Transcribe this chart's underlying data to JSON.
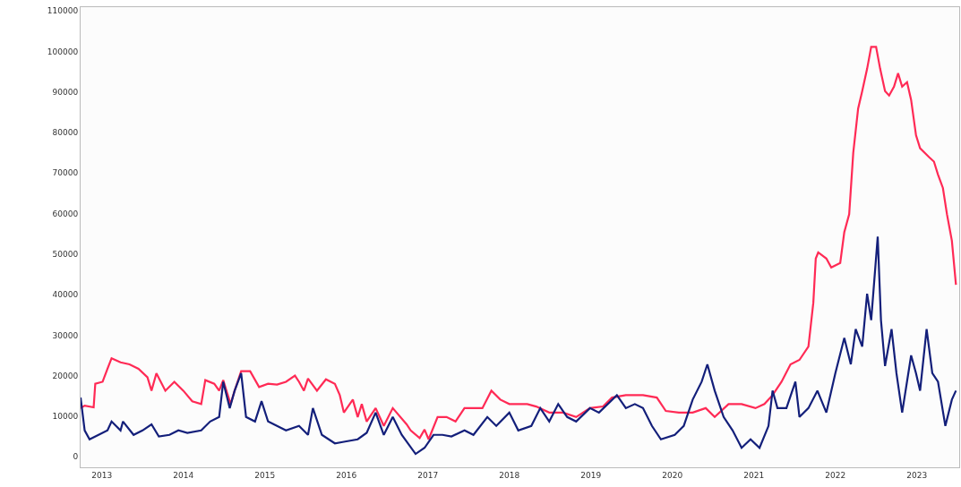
{
  "chart_data": {
    "type": "line",
    "xlim": [
      2012.74,
      2023.52
    ],
    "xticks": [
      2013,
      2014,
      2015,
      2016,
      2017,
      2018,
      2019,
      2020,
      2021,
      2022,
      2023
    ],
    "ylim": [
      -2600,
      110900
    ],
    "yticks": [
      0,
      10000,
      20000,
      30000,
      40000,
      50000,
      60000,
      70000,
      80000,
      90000,
      100000,
      110000
    ],
    "series": [
      {
        "color": "#ff2a55",
        "x": [
          2012.74,
          2012.79,
          2012.9,
          2012.92,
          2013.01,
          2013.07,
          2013.12,
          2013.23,
          2013.34,
          2013.45,
          2013.56,
          2013.61,
          2013.67,
          2013.78,
          2013.89,
          2014.0,
          2014.11,
          2014.22,
          2014.27,
          2014.38,
          2014.44,
          2014.49,
          2014.58,
          2014.63,
          2014.71,
          2014.82,
          2014.93,
          2015.04,
          2015.15,
          2015.26,
          2015.37,
          2015.42,
          2015.48,
          2015.53,
          2015.64,
          2015.75,
          2015.86,
          2015.92,
          2015.97,
          2016.08,
          2016.14,
          2016.19,
          2016.25,
          2016.36,
          2016.46,
          2016.57,
          2016.74,
          2016.79,
          2016.9,
          2016.96,
          2017.01,
          2017.12,
          2017.23,
          2017.34,
          2017.45,
          2017.56,
          2017.67,
          2017.78,
          2017.89,
          2018.0,
          2018.22,
          2018.33,
          2018.49,
          2018.66,
          2018.82,
          2018.99,
          2019.15,
          2019.26,
          2019.43,
          2019.64,
          2019.81,
          2019.92,
          2020.08,
          2020.25,
          2020.41,
          2020.52,
          2020.69,
          2020.85,
          2021.02,
          2021.13,
          2021.23,
          2021.34,
          2021.45,
          2021.56,
          2021.67,
          2021.73,
          2021.76,
          2021.79,
          2021.89,
          2021.95,
          2022.06,
          2022.11,
          2022.17,
          2022.22,
          2022.28,
          2022.33,
          2022.39,
          2022.44,
          2022.5,
          2022.55,
          2022.61,
          2022.66,
          2022.72,
          2022.77,
          2022.82,
          2022.88,
          2022.93,
          2022.99,
          2023.04,
          2023.15,
          2023.21,
          2023.26,
          2023.32,
          2023.37,
          2023.43,
          2023.48
        ],
        "values": [
          12000,
          12600,
          12200,
          18000,
          18500,
          21700,
          24300,
          23300,
          22800,
          21700,
          19600,
          16300,
          20600,
          16300,
          18500,
          16300,
          13700,
          13000,
          18900,
          18000,
          16300,
          18900,
          13000,
          16300,
          21100,
          21100,
          17200,
          18000,
          17800,
          18500,
          20000,
          18500,
          16300,
          19300,
          16300,
          19100,
          18000,
          15200,
          10900,
          14100,
          9800,
          13000,
          8700,
          12000,
          7600,
          12000,
          8000,
          6500,
          4600,
          6700,
          4300,
          9800,
          9800,
          8700,
          12000,
          12000,
          12000,
          16300,
          14100,
          13000,
          13000,
          12400,
          10900,
          10900,
          9800,
          12000,
          12400,
          14600,
          15200,
          15200,
          14600,
          11300,
          10900,
          10900,
          12000,
          9800,
          13000,
          13000,
          12000,
          13000,
          15200,
          18500,
          22800,
          23900,
          27200,
          38000,
          48900,
          50400,
          48900,
          46700,
          47800,
          55400,
          59800,
          75000,
          85900,
          90200,
          95700,
          101100,
          101100,
          95700,
          90200,
          89100,
          91300,
          94600,
          91300,
          92400,
          88000,
          79300,
          76100,
          73900,
          72800,
          69600,
          66300,
          59800,
          53300,
          42400
        ]
      },
      {
        "color": "#131f7a",
        "x": [
          2012.74,
          2012.79,
          2012.85,
          2012.96,
          2013.07,
          2013.12,
          2013.23,
          2013.26,
          2013.39,
          2013.5,
          2013.61,
          2013.7,
          2013.83,
          2013.94,
          2014.05,
          2014.22,
          2014.33,
          2014.44,
          2014.49,
          2014.57,
          2014.63,
          2014.71,
          2014.77,
          2014.88,
          2014.96,
          2015.04,
          2015.15,
          2015.26,
          2015.42,
          2015.53,
          2015.59,
          2015.7,
          2015.86,
          2015.97,
          2016.14,
          2016.25,
          2016.36,
          2016.46,
          2016.57,
          2016.68,
          2016.85,
          2016.96,
          2017.07,
          2017.18,
          2017.29,
          2017.45,
          2017.56,
          2017.73,
          2017.84,
          2018.0,
          2018.11,
          2018.27,
          2018.38,
          2018.49,
          2018.6,
          2018.71,
          2018.82,
          2018.99,
          2019.1,
          2019.32,
          2019.43,
          2019.54,
          2019.64,
          2019.75,
          2019.86,
          2020.03,
          2020.14,
          2020.25,
          2020.36,
          2020.43,
          2020.52,
          2020.63,
          2020.74,
          2020.85,
          2020.96,
          2021.07,
          2021.18,
          2021.23,
          2021.29,
          2021.4,
          2021.51,
          2021.56,
          2021.67,
          2021.78,
          2021.89,
          2022.0,
          2022.11,
          2022.19,
          2022.25,
          2022.33,
          2022.39,
          2022.44,
          2022.52,
          2022.56,
          2022.61,
          2022.69,
          2022.75,
          2022.82,
          2022.93,
          2022.99,
          2023.04,
          2023.12,
          2023.19,
          2023.26,
          2023.35,
          2023.43,
          2023.48
        ],
        "values": [
          14600,
          6500,
          4300,
          5400,
          6500,
          8700,
          6500,
          8700,
          5400,
          6500,
          8000,
          5000,
          5400,
          6500,
          5900,
          6500,
          8700,
          9800,
          18500,
          12000,
          16300,
          20600,
          9800,
          8700,
          13700,
          8700,
          7600,
          6500,
          7600,
          5400,
          12000,
          5400,
          3300,
          3700,
          4300,
          5900,
          10900,
          5400,
          9800,
          5400,
          700,
          2200,
          5400,
          5400,
          5000,
          6500,
          5400,
          9800,
          7600,
          10900,
          6500,
          7600,
          12000,
          8700,
          13000,
          9800,
          8700,
          12000,
          10900,
          15200,
          12000,
          13000,
          12000,
          7600,
          4300,
          5400,
          7600,
          14100,
          18500,
          22800,
          16300,
          9800,
          6500,
          2200,
          4300,
          2200,
          7600,
          16300,
          12000,
          12000,
          18500,
          9800,
          12000,
          16300,
          10900,
          20600,
          29300,
          22800,
          31500,
          27200,
          40200,
          33700,
          54300,
          33700,
          22400,
          31500,
          20600,
          10900,
          25000,
          20600,
          16300,
          31500,
          20600,
          18500,
          7600,
          14100,
          16300
        ]
      }
    ]
  }
}
